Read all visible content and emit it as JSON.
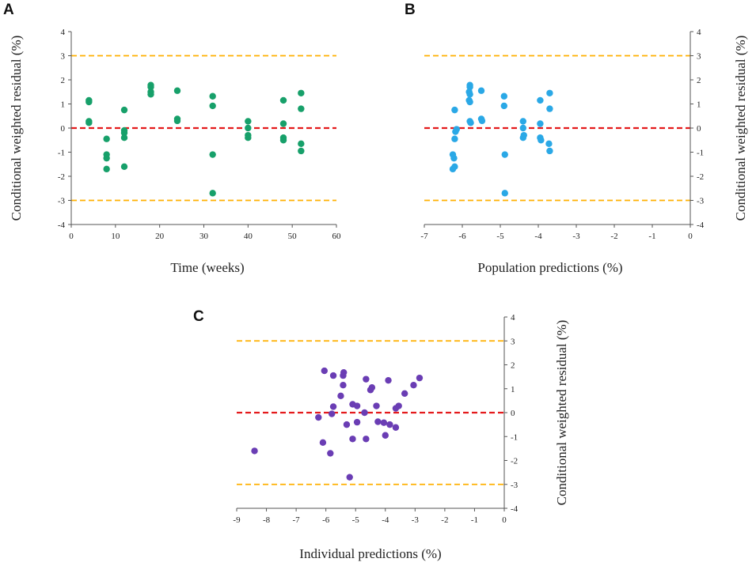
{
  "figure": {
    "panels": [
      "A",
      "B",
      "C"
    ]
  },
  "colors": {
    "zero_line": "#e41a1c",
    "bound_line": "#ffb000",
    "axis": "#555555",
    "panel_a_points": "#17a06a",
    "panel_b_points": "#2aa8e6",
    "panel_c_points": "#6a3db4"
  },
  "chart_data": [
    {
      "panel": "A",
      "type": "scatter",
      "xlabel": "Time (weeks)",
      "ylabel": "Conditional weighted residual (%)",
      "xlim": [
        0,
        60
      ],
      "ylim": [
        -4,
        4
      ],
      "xticks": [
        0,
        10,
        20,
        30,
        40,
        50,
        60
      ],
      "yticks": [
        -4,
        -3,
        -2,
        -1,
        0,
        1,
        2,
        3,
        4
      ],
      "yaxis_side": "left",
      "reference_lines": [
        {
          "y": 0,
          "style": "red-dashed"
        },
        {
          "y": 3,
          "style": "orange-dashed"
        },
        {
          "y": -3,
          "style": "orange-dashed"
        }
      ],
      "points": [
        [
          4,
          1.15
        ],
        [
          4,
          1.08
        ],
        [
          4,
          0.28
        ],
        [
          4,
          0.22
        ],
        [
          8,
          -0.45
        ],
        [
          8,
          -1.1
        ],
        [
          8,
          -1.25
        ],
        [
          8,
          -1.7
        ],
        [
          12,
          0.75
        ],
        [
          12,
          -0.1
        ],
        [
          12,
          -0.2
        ],
        [
          12,
          -0.4
        ],
        [
          12,
          -1.6
        ],
        [
          18,
          1.78
        ],
        [
          18,
          1.7
        ],
        [
          18,
          1.5
        ],
        [
          18,
          1.4
        ],
        [
          24,
          1.55
        ],
        [
          24,
          0.38
        ],
        [
          24,
          0.3
        ],
        [
          32,
          1.32
        ],
        [
          32,
          0.92
        ],
        [
          32,
          -1.1
        ],
        [
          32,
          -2.7
        ],
        [
          40,
          0.28
        ],
        [
          40,
          0.0
        ],
        [
          40,
          -0.3
        ],
        [
          40,
          -0.4
        ],
        [
          48,
          1.15
        ],
        [
          48,
          0.18
        ],
        [
          48,
          -0.4
        ],
        [
          48,
          -0.5
        ],
        [
          52,
          1.45
        ],
        [
          52,
          0.8
        ],
        [
          52,
          -0.65
        ],
        [
          52,
          -0.95
        ]
      ]
    },
    {
      "panel": "B",
      "type": "scatter",
      "xlabel": "Population predictions (%)",
      "ylabel": "Conditional weighted residual (%)",
      "xlim": [
        -7,
        0
      ],
      "ylim": [
        -4,
        4
      ],
      "xticks": [
        -7,
        -6,
        -5,
        -4,
        -3,
        -2,
        -1,
        0
      ],
      "yticks": [
        -4,
        -3,
        -2,
        -1,
        0,
        1,
        2,
        3,
        4
      ],
      "yaxis_side": "right",
      "reference_lines": [
        {
          "y": 0,
          "style": "red-dashed"
        },
        {
          "y": 3,
          "style": "orange-dashed"
        },
        {
          "y": -3,
          "style": "orange-dashed"
        }
      ],
      "points": [
        [
          -6.2,
          0.75
        ],
        [
          -6.15,
          -0.05
        ],
        [
          -6.18,
          -0.15
        ],
        [
          -6.2,
          -0.45
        ],
        [
          -6.25,
          -1.1
        ],
        [
          -6.22,
          -1.25
        ],
        [
          -6.25,
          -1.7
        ],
        [
          -6.2,
          -1.6
        ],
        [
          -5.8,
          1.78
        ],
        [
          -5.8,
          1.7
        ],
        [
          -5.82,
          1.5
        ],
        [
          -5.8,
          1.4
        ],
        [
          -5.82,
          1.15
        ],
        [
          -5.8,
          1.08
        ],
        [
          -5.8,
          0.28
        ],
        [
          -5.78,
          0.22
        ],
        [
          -5.5,
          1.55
        ],
        [
          -5.5,
          0.38
        ],
        [
          -5.48,
          0.3
        ],
        [
          -4.9,
          1.32
        ],
        [
          -4.9,
          0.92
        ],
        [
          -4.88,
          -1.1
        ],
        [
          -4.88,
          -2.7
        ],
        [
          -4.4,
          0.28
        ],
        [
          -4.4,
          0.0
        ],
        [
          -4.38,
          -0.3
        ],
        [
          -4.4,
          -0.4
        ],
        [
          -3.95,
          1.15
        ],
        [
          -3.95,
          0.18
        ],
        [
          -3.95,
          -0.4
        ],
        [
          -3.93,
          -0.5
        ],
        [
          -3.7,
          1.45
        ],
        [
          -3.7,
          0.8
        ],
        [
          -3.72,
          -0.65
        ],
        [
          -3.7,
          -0.95
        ]
      ]
    },
    {
      "panel": "C",
      "type": "scatter",
      "xlabel": "Individual predictions (%)",
      "ylabel": "Conditional weighted residual (%)",
      "xlim": [
        -9,
        0
      ],
      "ylim": [
        -4,
        4
      ],
      "xticks": [
        -9,
        -8,
        -7,
        -6,
        -5,
        -4,
        -3,
        -2,
        -1,
        0
      ],
      "yticks": [
        -4,
        -3,
        -2,
        -1,
        0,
        1,
        2,
        3,
        4
      ],
      "yaxis_side": "right",
      "reference_lines": [
        {
          "y": 0,
          "style": "red-dashed"
        },
        {
          "y": 3,
          "style": "orange-dashed"
        },
        {
          "y": -3,
          "style": "orange-dashed"
        }
      ],
      "points": [
        [
          -8.4,
          -1.6
        ],
        [
          -6.05,
          1.75
        ],
        [
          -5.75,
          1.55
        ],
        [
          -5.4,
          1.68
        ],
        [
          -5.42,
          1.55
        ],
        [
          -4.65,
          1.4
        ],
        [
          -4.45,
          1.05
        ],
        [
          -5.42,
          1.15
        ],
        [
          -4.5,
          0.95
        ],
        [
          -3.9,
          1.35
        ],
        [
          -2.85,
          1.45
        ],
        [
          -3.05,
          1.15
        ],
        [
          -3.35,
          0.8
        ],
        [
          -5.5,
          0.7
        ],
        [
          -5.1,
          0.35
        ],
        [
          -4.95,
          0.28
        ],
        [
          -4.3,
          0.28
        ],
        [
          -3.55,
          0.28
        ],
        [
          -3.65,
          0.18
        ],
        [
          -5.75,
          0.25
        ],
        [
          -4.7,
          0.0
        ],
        [
          -5.8,
          -0.05
        ],
        [
          -6.25,
          -0.2
        ],
        [
          -5.3,
          -0.5
        ],
        [
          -4.95,
          -0.4
        ],
        [
          -4.25,
          -0.38
        ],
        [
          -4.05,
          -0.42
        ],
        [
          -3.85,
          -0.5
        ],
        [
          -3.65,
          -0.62
        ],
        [
          -4.0,
          -0.95
        ],
        [
          -5.1,
          -1.1
        ],
        [
          -4.65,
          -1.1
        ],
        [
          -6.1,
          -1.25
        ],
        [
          -5.85,
          -1.7
        ],
        [
          -5.2,
          -2.7
        ]
      ]
    }
  ]
}
